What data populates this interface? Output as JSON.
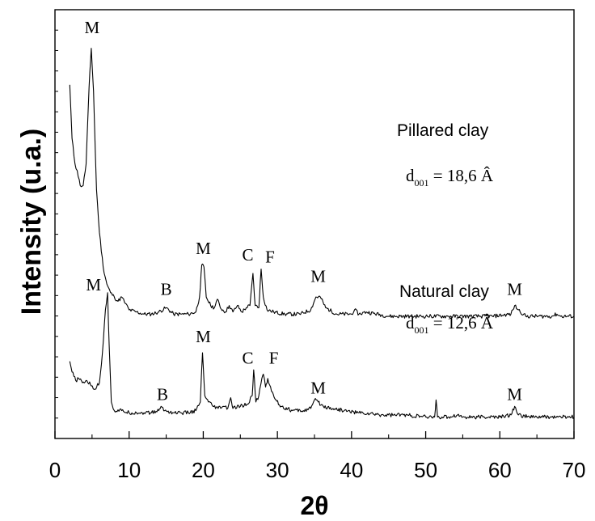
{
  "chart_data": {
    "type": "line",
    "xlabel": "2θ",
    "ylabel": "Intensity (u.a.)",
    "xlim": [
      0,
      70
    ],
    "xticks": [
      0,
      10,
      20,
      30,
      40,
      50,
      60,
      70
    ],
    "yticks_labeled": false,
    "grid": false,
    "series": [
      {
        "name": "Pillared clay",
        "spacing_label": "d",
        "spacing_sub": "001",
        "spacing_value": " = 18,6 Â",
        "color": "#000000",
        "points": [
          [
            2.0,
            0.825
          ],
          [
            2.3,
            0.7
          ],
          [
            2.7,
            0.64
          ],
          [
            3.0,
            0.625
          ],
          [
            3.4,
            0.59
          ],
          [
            3.8,
            0.59
          ],
          [
            4.2,
            0.64
          ],
          [
            4.6,
            0.82
          ],
          [
            4.9,
            0.91
          ],
          [
            5.2,
            0.81
          ],
          [
            5.6,
            0.58
          ],
          [
            6.0,
            0.48
          ],
          [
            6.5,
            0.4
          ],
          [
            7.0,
            0.36
          ],
          [
            7.5,
            0.34
          ],
          [
            8.0,
            0.33
          ],
          [
            8.5,
            0.32
          ],
          [
            9.0,
            0.33
          ],
          [
            9.5,
            0.315
          ],
          [
            10.0,
            0.3
          ],
          [
            11,
            0.295
          ],
          [
            12,
            0.29
          ],
          [
            13,
            0.29
          ],
          [
            14,
            0.295
          ],
          [
            15.0,
            0.305
          ],
          [
            16,
            0.29
          ],
          [
            17,
            0.29
          ],
          [
            18,
            0.29
          ],
          [
            19,
            0.295
          ],
          [
            19.5,
            0.33
          ],
          [
            19.8,
            0.405
          ],
          [
            20.1,
            0.4
          ],
          [
            20.4,
            0.33
          ],
          [
            21,
            0.31
          ],
          [
            21.5,
            0.305
          ],
          [
            21.9,
            0.325
          ],
          [
            22.3,
            0.305
          ],
          [
            23,
            0.295
          ],
          [
            23.5,
            0.31
          ],
          [
            24.0,
            0.295
          ],
          [
            24.6,
            0.31
          ],
          [
            25.2,
            0.295
          ],
          [
            25.8,
            0.305
          ],
          [
            26.3,
            0.31
          ],
          [
            26.7,
            0.385
          ],
          [
            27.0,
            0.31
          ],
          [
            27.5,
            0.305
          ],
          [
            27.8,
            0.395
          ],
          [
            28.1,
            0.33
          ],
          [
            28.6,
            0.3
          ],
          [
            29.5,
            0.295
          ],
          [
            31,
            0.29
          ],
          [
            33,
            0.29
          ],
          [
            34.5,
            0.3
          ],
          [
            35.2,
            0.33
          ],
          [
            35.8,
            0.33
          ],
          [
            36.5,
            0.305
          ],
          [
            38,
            0.29
          ],
          [
            40,
            0.29
          ],
          [
            40.4,
            0.3
          ],
          [
            41,
            0.29
          ],
          [
            42,
            0.295
          ],
          [
            45,
            0.285
          ],
          [
            48,
            0.285
          ],
          [
            50,
            0.285
          ],
          [
            53,
            0.285
          ],
          [
            56,
            0.285
          ],
          [
            59,
            0.285
          ],
          [
            61.5,
            0.29
          ],
          [
            62.0,
            0.31
          ],
          [
            62.5,
            0.3
          ],
          [
            63.5,
            0.285
          ],
          [
            67,
            0.285
          ],
          [
            67.7,
            0.29
          ],
          [
            68.2,
            0.285
          ],
          [
            70,
            0.285
          ]
        ]
      },
      {
        "name": "Natural clay",
        "spacing_label": "d",
        "spacing_sub": "001",
        "spacing_value": " = 12,6 Â",
        "color": "#000000",
        "points": [
          [
            2.0,
            0.18
          ],
          [
            2.3,
            0.155
          ],
          [
            2.8,
            0.135
          ],
          [
            3.2,
            0.14
          ],
          [
            3.7,
            0.13
          ],
          [
            4.3,
            0.135
          ],
          [
            4.8,
            0.125
          ],
          [
            5.4,
            0.115
          ],
          [
            6.0,
            0.13
          ],
          [
            6.4,
            0.2
          ],
          [
            6.8,
            0.3
          ],
          [
            7.1,
            0.34
          ],
          [
            7.3,
            0.22
          ],
          [
            7.6,
            0.085
          ],
          [
            8.0,
            0.065
          ],
          [
            9,
            0.065
          ],
          [
            10,
            0.06
          ],
          [
            11,
            0.06
          ],
          [
            12,
            0.06
          ],
          [
            13,
            0.06
          ],
          [
            14.0,
            0.065
          ],
          [
            14.3,
            0.075
          ],
          [
            14.8,
            0.065
          ],
          [
            16,
            0.06
          ],
          [
            17,
            0.06
          ],
          [
            18,
            0.06
          ],
          [
            19,
            0.065
          ],
          [
            19.6,
            0.085
          ],
          [
            19.9,
            0.2
          ],
          [
            20.2,
            0.1
          ],
          [
            20.7,
            0.085
          ],
          [
            21.3,
            0.075
          ],
          [
            22,
            0.07
          ],
          [
            22.7,
            0.075
          ],
          [
            23.3,
            0.07
          ],
          [
            23.7,
            0.095
          ],
          [
            24.0,
            0.07
          ],
          [
            25.0,
            0.075
          ],
          [
            26.0,
            0.08
          ],
          [
            26.6,
            0.1
          ],
          [
            26.8,
            0.16
          ],
          [
            27.1,
            0.085
          ],
          [
            27.5,
            0.1
          ],
          [
            27.9,
            0.14
          ],
          [
            28.1,
            0.15
          ],
          [
            28.4,
            0.12
          ],
          [
            28.7,
            0.14
          ],
          [
            29.2,
            0.11
          ],
          [
            29.8,
            0.09
          ],
          [
            30.5,
            0.075
          ],
          [
            32,
            0.065
          ],
          [
            33.5,
            0.065
          ],
          [
            34.5,
            0.07
          ],
          [
            35.0,
            0.09
          ],
          [
            35.5,
            0.085
          ],
          [
            36.2,
            0.075
          ],
          [
            37.5,
            0.07
          ],
          [
            39,
            0.065
          ],
          [
            41,
            0.06
          ],
          [
            44,
            0.055
          ],
          [
            47,
            0.055
          ],
          [
            50,
            0.05
          ],
          [
            51.2,
            0.05
          ],
          [
            51.4,
            0.09
          ],
          [
            51.6,
            0.05
          ],
          [
            53,
            0.05
          ],
          [
            54.3,
            0.055
          ],
          [
            55,
            0.05
          ],
          [
            57,
            0.05
          ],
          [
            60,
            0.05
          ],
          [
            61.5,
            0.055
          ],
          [
            62.0,
            0.075
          ],
          [
            62.5,
            0.055
          ],
          [
            64,
            0.05
          ],
          [
            67,
            0.05
          ],
          [
            70,
            0.05
          ]
        ]
      }
    ],
    "annotations": [
      {
        "text": "M",
        "x": 5.0,
        "y": 0.945
      },
      {
        "text": "B",
        "x": 15.0,
        "y": 0.335
      },
      {
        "text": "M",
        "x": 20.0,
        "y": 0.43
      },
      {
        "text": "C",
        "x": 26.0,
        "y": 0.415
      },
      {
        "text": "F",
        "x": 29.0,
        "y": 0.41
      },
      {
        "text": "M",
        "x": 35.5,
        "y": 0.365
      },
      {
        "text": "M",
        "x": 62.0,
        "y": 0.335
      },
      {
        "text": "M",
        "x": 5.2,
        "y": 0.345
      },
      {
        "text": "B",
        "x": 14.5,
        "y": 0.09
      },
      {
        "text": "M",
        "x": 20.0,
        "y": 0.225
      },
      {
        "text": "C",
        "x": 26.0,
        "y": 0.175
      },
      {
        "text": "F",
        "x": 29.5,
        "y": 0.175
      },
      {
        "text": "M",
        "x": 35.5,
        "y": 0.105
      },
      {
        "text": "M",
        "x": 62.0,
        "y": 0.09
      }
    ]
  }
}
